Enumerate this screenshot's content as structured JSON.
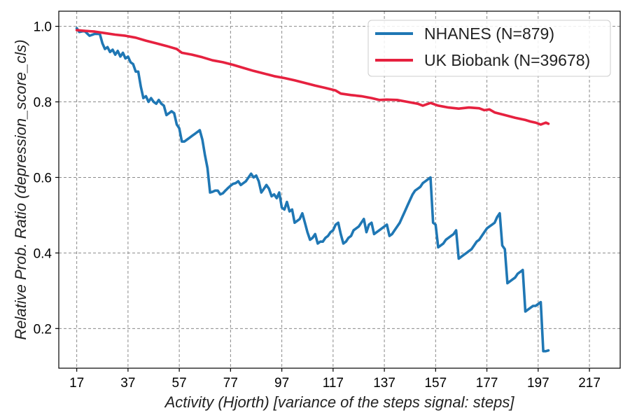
{
  "chart_data": {
    "type": "line",
    "title": "",
    "xlabel": "Activity (Hjorth) [variance of the steps signal: steps]",
    "ylabel": "Relative Prob. Ratio (depression_score_cls)",
    "xlim": [
      10,
      229
    ],
    "ylim": [
      0.095,
      1.04
    ],
    "xticks": [
      17,
      37,
      57,
      77,
      97,
      117,
      137,
      157,
      177,
      197,
      217
    ],
    "yticks": [
      0.2,
      0.4,
      0.6,
      0.8,
      1.0
    ],
    "ytick_labels": [
      "0.2",
      "0.4",
      "0.6",
      "0.8",
      "1.0"
    ],
    "grid": true,
    "legend_position": "top-right",
    "series": [
      {
        "name": "NHANES (N=879)",
        "color": "#1f77b4",
        "points": [
          [
            17,
            0.995
          ],
          [
            18,
            0.985
          ],
          [
            20,
            0.988
          ],
          [
            22,
            0.975
          ],
          [
            24,
            0.98
          ],
          [
            26,
            0.98
          ],
          [
            27,
            0.955
          ],
          [
            28,
            0.94
          ],
          [
            29,
            0.945
          ],
          [
            30,
            0.932
          ],
          [
            31,
            0.938
          ],
          [
            32,
            0.925
          ],
          [
            33,
            0.935
          ],
          [
            34,
            0.92
          ],
          [
            35,
            0.93
          ],
          [
            36,
            0.915
          ],
          [
            37,
            0.92
          ],
          [
            38,
            0.905
          ],
          [
            39,
            0.9
          ],
          [
            40,
            0.88
          ],
          [
            41,
            0.88
          ],
          [
            42,
            0.84
          ],
          [
            43,
            0.81
          ],
          [
            44,
            0.815
          ],
          [
            45,
            0.8
          ],
          [
            46,
            0.81
          ],
          [
            47,
            0.8
          ],
          [
            48,
            0.795
          ],
          [
            49,
            0.805
          ],
          [
            50,
            0.795
          ],
          [
            51,
            0.79
          ],
          [
            52,
            0.765
          ],
          [
            53,
            0.77
          ],
          [
            54,
            0.775
          ],
          [
            55,
            0.77
          ],
          [
            56,
            0.74
          ],
          [
            57,
            0.73
          ],
          [
            58,
            0.695
          ],
          [
            59,
            0.695
          ],
          [
            60,
            0.7
          ],
          [
            61,
            0.705
          ],
          [
            62,
            0.71
          ],
          [
            63,
            0.715
          ],
          [
            64,
            0.72
          ],
          [
            65,
            0.725
          ],
          [
            66,
            0.7
          ],
          [
            67,
            0.66
          ],
          [
            68,
            0.625
          ],
          [
            69,
            0.56
          ],
          [
            70,
            0.562
          ],
          [
            71,
            0.565
          ],
          [
            72,
            0.565
          ],
          [
            73,
            0.555
          ],
          [
            74,
            0.558
          ],
          [
            75,
            0.565
          ],
          [
            76,
            0.572
          ],
          [
            77,
            0.578
          ],
          [
            78,
            0.583
          ],
          [
            79,
            0.585
          ],
          [
            80,
            0.59
          ],
          [
            81,
            0.58
          ],
          [
            82,
            0.585
          ],
          [
            83,
            0.59
          ],
          [
            84,
            0.6
          ],
          [
            85,
            0.61
          ],
          [
            86,
            0.6
          ],
          [
            87,
            0.605
          ],
          [
            88,
            0.59
          ],
          [
            89,
            0.56
          ],
          [
            90,
            0.57
          ],
          [
            91,
            0.58
          ],
          [
            92,
            0.57
          ],
          [
            93,
            0.55
          ],
          [
            94,
            0.555
          ],
          [
            95,
            0.545
          ],
          [
            96,
            0.56
          ],
          [
            97,
            0.52
          ],
          [
            98,
            0.515
          ],
          [
            99,
            0.535
          ],
          [
            100,
            0.51
          ],
          [
            101,
            0.515
          ],
          [
            102,
            0.48
          ],
          [
            103,
            0.485
          ],
          [
            104,
            0.49
          ],
          [
            105,
            0.505
          ],
          [
            106,
            0.48
          ],
          [
            107,
            0.455
          ],
          [
            108,
            0.435
          ],
          [
            109,
            0.44
          ],
          [
            110,
            0.45
          ],
          [
            111,
            0.425
          ],
          [
            112,
            0.43
          ],
          [
            113,
            0.43
          ],
          [
            114,
            0.44
          ],
          [
            115,
            0.445
          ],
          [
            116,
            0.455
          ],
          [
            117,
            0.46
          ],
          [
            118,
            0.475
          ],
          [
            119,
            0.48
          ],
          [
            120,
            0.45
          ],
          [
            121,
            0.425
          ],
          [
            122,
            0.43
          ],
          [
            123,
            0.44
          ],
          [
            124,
            0.445
          ],
          [
            125,
            0.46
          ],
          [
            126,
            0.465
          ],
          [
            127,
            0.47
          ],
          [
            128,
            0.48
          ],
          [
            129,
            0.49
          ],
          [
            130,
            0.455
          ],
          [
            131,
            0.475
          ],
          [
            132,
            0.48
          ],
          [
            133,
            0.45
          ],
          [
            134,
            0.455
          ],
          [
            135,
            0.46
          ],
          [
            136,
            0.465
          ],
          [
            137,
            0.47
          ],
          [
            138,
            0.475
          ],
          [
            139,
            0.445
          ],
          [
            140,
            0.45
          ],
          [
            141,
            0.46
          ],
          [
            142,
            0.47
          ],
          [
            143,
            0.48
          ],
          [
            144,
            0.495
          ],
          [
            145,
            0.51
          ],
          [
            146,
            0.525
          ],
          [
            147,
            0.54
          ],
          [
            148,
            0.555
          ],
          [
            149,
            0.565
          ],
          [
            150,
            0.57
          ],
          [
            151,
            0.575
          ],
          [
            152,
            0.585
          ],
          [
            153,
            0.59
          ],
          [
            154,
            0.595
          ],
          [
            155,
            0.6
          ],
          [
            156,
            0.48
          ],
          [
            157,
            0.475
          ],
          [
            158,
            0.415
          ],
          [
            159,
            0.42
          ],
          [
            160,
            0.425
          ],
          [
            161,
            0.435
          ],
          [
            162,
            0.44
          ],
          [
            163,
            0.445
          ],
          [
            164,
            0.45
          ],
          [
            165,
            0.46
          ],
          [
            166,
            0.385
          ],
          [
            167,
            0.39
          ],
          [
            168,
            0.395
          ],
          [
            169,
            0.4
          ],
          [
            170,
            0.405
          ],
          [
            171,
            0.41
          ],
          [
            172,
            0.42
          ],
          [
            173,
            0.43
          ],
          [
            174,
            0.435
          ],
          [
            175,
            0.445
          ],
          [
            176,
            0.455
          ],
          [
            177,
            0.465
          ],
          [
            178,
            0.47
          ],
          [
            179,
            0.475
          ],
          [
            180,
            0.48
          ],
          [
            181,
            0.495
          ],
          [
            182,
            0.505
          ],
          [
            183,
            0.42
          ],
          [
            184,
            0.41
          ],
          [
            185,
            0.32
          ],
          [
            186,
            0.325
          ],
          [
            187,
            0.33
          ],
          [
            188,
            0.335
          ],
          [
            189,
            0.345
          ],
          [
            190,
            0.35
          ],
          [
            191,
            0.355
          ],
          [
            192,
            0.245
          ],
          [
            193,
            0.25
          ],
          [
            194,
            0.255
          ],
          [
            195,
            0.26
          ],
          [
            196,
            0.26
          ],
          [
            197,
            0.265
          ],
          [
            198,
            0.27
          ],
          [
            199,
            0.14
          ],
          [
            200,
            0.14
          ],
          [
            201,
            0.142
          ]
        ]
      },
      {
        "name": "UK Biobank (N=39678)",
        "color": "#e6213f",
        "points": [
          [
            17,
            0.99
          ],
          [
            20,
            0.988
          ],
          [
            24,
            0.986
          ],
          [
            28,
            0.982
          ],
          [
            32,
            0.978
          ],
          [
            36,
            0.975
          ],
          [
            40,
            0.97
          ],
          [
            44,
            0.962
          ],
          [
            48,
            0.955
          ],
          [
            52,
            0.948
          ],
          [
            56,
            0.94
          ],
          [
            58,
            0.93
          ],
          [
            62,
            0.925
          ],
          [
            66,
            0.918
          ],
          [
            70,
            0.91
          ],
          [
            74,
            0.905
          ],
          [
            78,
            0.898
          ],
          [
            82,
            0.89
          ],
          [
            86,
            0.882
          ],
          [
            90,
            0.875
          ],
          [
            94,
            0.868
          ],
          [
            98,
            0.863
          ],
          [
            102,
            0.857
          ],
          [
            106,
            0.85
          ],
          [
            110,
            0.843
          ],
          [
            114,
            0.837
          ],
          [
            118,
            0.83
          ],
          [
            120,
            0.822
          ],
          [
            124,
            0.818
          ],
          [
            128,
            0.815
          ],
          [
            132,
            0.81
          ],
          [
            135,
            0.805
          ],
          [
            138,
            0.806
          ],
          [
            142,
            0.805
          ],
          [
            146,
            0.8
          ],
          [
            150,
            0.795
          ],
          [
            152,
            0.79
          ],
          [
            155,
            0.797
          ],
          [
            158,
            0.79
          ],
          [
            162,
            0.785
          ],
          [
            166,
            0.782
          ],
          [
            170,
            0.785
          ],
          [
            174,
            0.783
          ],
          [
            176,
            0.778
          ],
          [
            178,
            0.78
          ],
          [
            180,
            0.772
          ],
          [
            184,
            0.765
          ],
          [
            188,
            0.758
          ],
          [
            192,
            0.752
          ],
          [
            194,
            0.748
          ],
          [
            196,
            0.745
          ],
          [
            198,
            0.74
          ],
          [
            200,
            0.745
          ],
          [
            201,
            0.742
          ]
        ]
      }
    ]
  }
}
